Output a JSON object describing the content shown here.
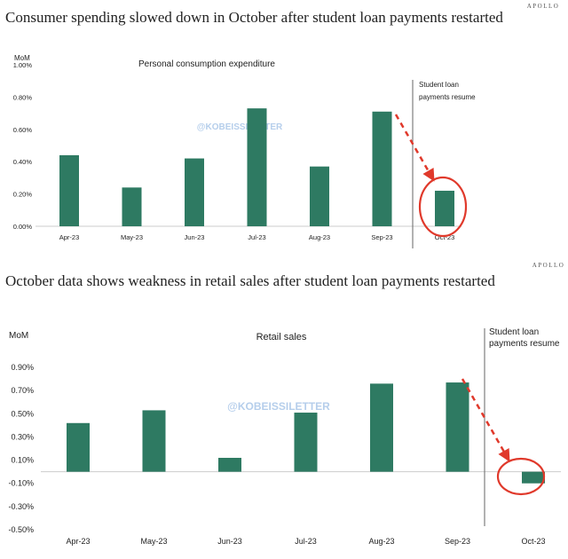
{
  "colors": {
    "bar": "#2e7a62",
    "highlight": "#e0392b",
    "axis": "#666666",
    "baseline": "#cccccc"
  },
  "watermark": "@KOBEISSILETTER",
  "chart_data": [
    {
      "type": "bar",
      "title": "Consumer spending slowed down in October after student loan payments restarted",
      "brand": "APOLLO",
      "subtitle": "Personal consumption expenditure",
      "ylabel": "MoM",
      "annotation": "Student loan payments resume",
      "categories": [
        "Apr-23",
        "May-23",
        "Jun-23",
        "Jul-23",
        "Aug-23",
        "Sep-23",
        "Oct-23"
      ],
      "values": [
        0.44,
        0.24,
        0.42,
        0.73,
        0.37,
        0.71,
        0.22
      ],
      "ylim": [
        0,
        1.0
      ],
      "yticks": [
        "0.00%",
        "0.20%",
        "0.40%",
        "0.60%",
        "0.80%",
        "1.00%"
      ],
      "highlight_category": "Oct-23",
      "grid": false
    },
    {
      "type": "bar",
      "title": "October data shows weakness in retail sales after student loan payments restarted",
      "brand": "APOLLO",
      "subtitle": "Retail sales",
      "ylabel": "MoM",
      "annotation": "Student loan payments resume",
      "categories": [
        "Apr-23",
        "May-23",
        "Jun-23",
        "Jul-23",
        "Aug-23",
        "Sep-23",
        "Oct-23"
      ],
      "values": [
        0.42,
        0.53,
        0.12,
        0.51,
        0.76,
        0.77,
        -0.1
      ],
      "ylim": [
        -0.5,
        1.0
      ],
      "yticks": [
        "-0.50%",
        "-0.30%",
        "-0.10%",
        "0.10%",
        "0.30%",
        "0.50%",
        "0.70%",
        "0.90%"
      ],
      "highlight_category": "Oct-23",
      "grid": false
    }
  ]
}
